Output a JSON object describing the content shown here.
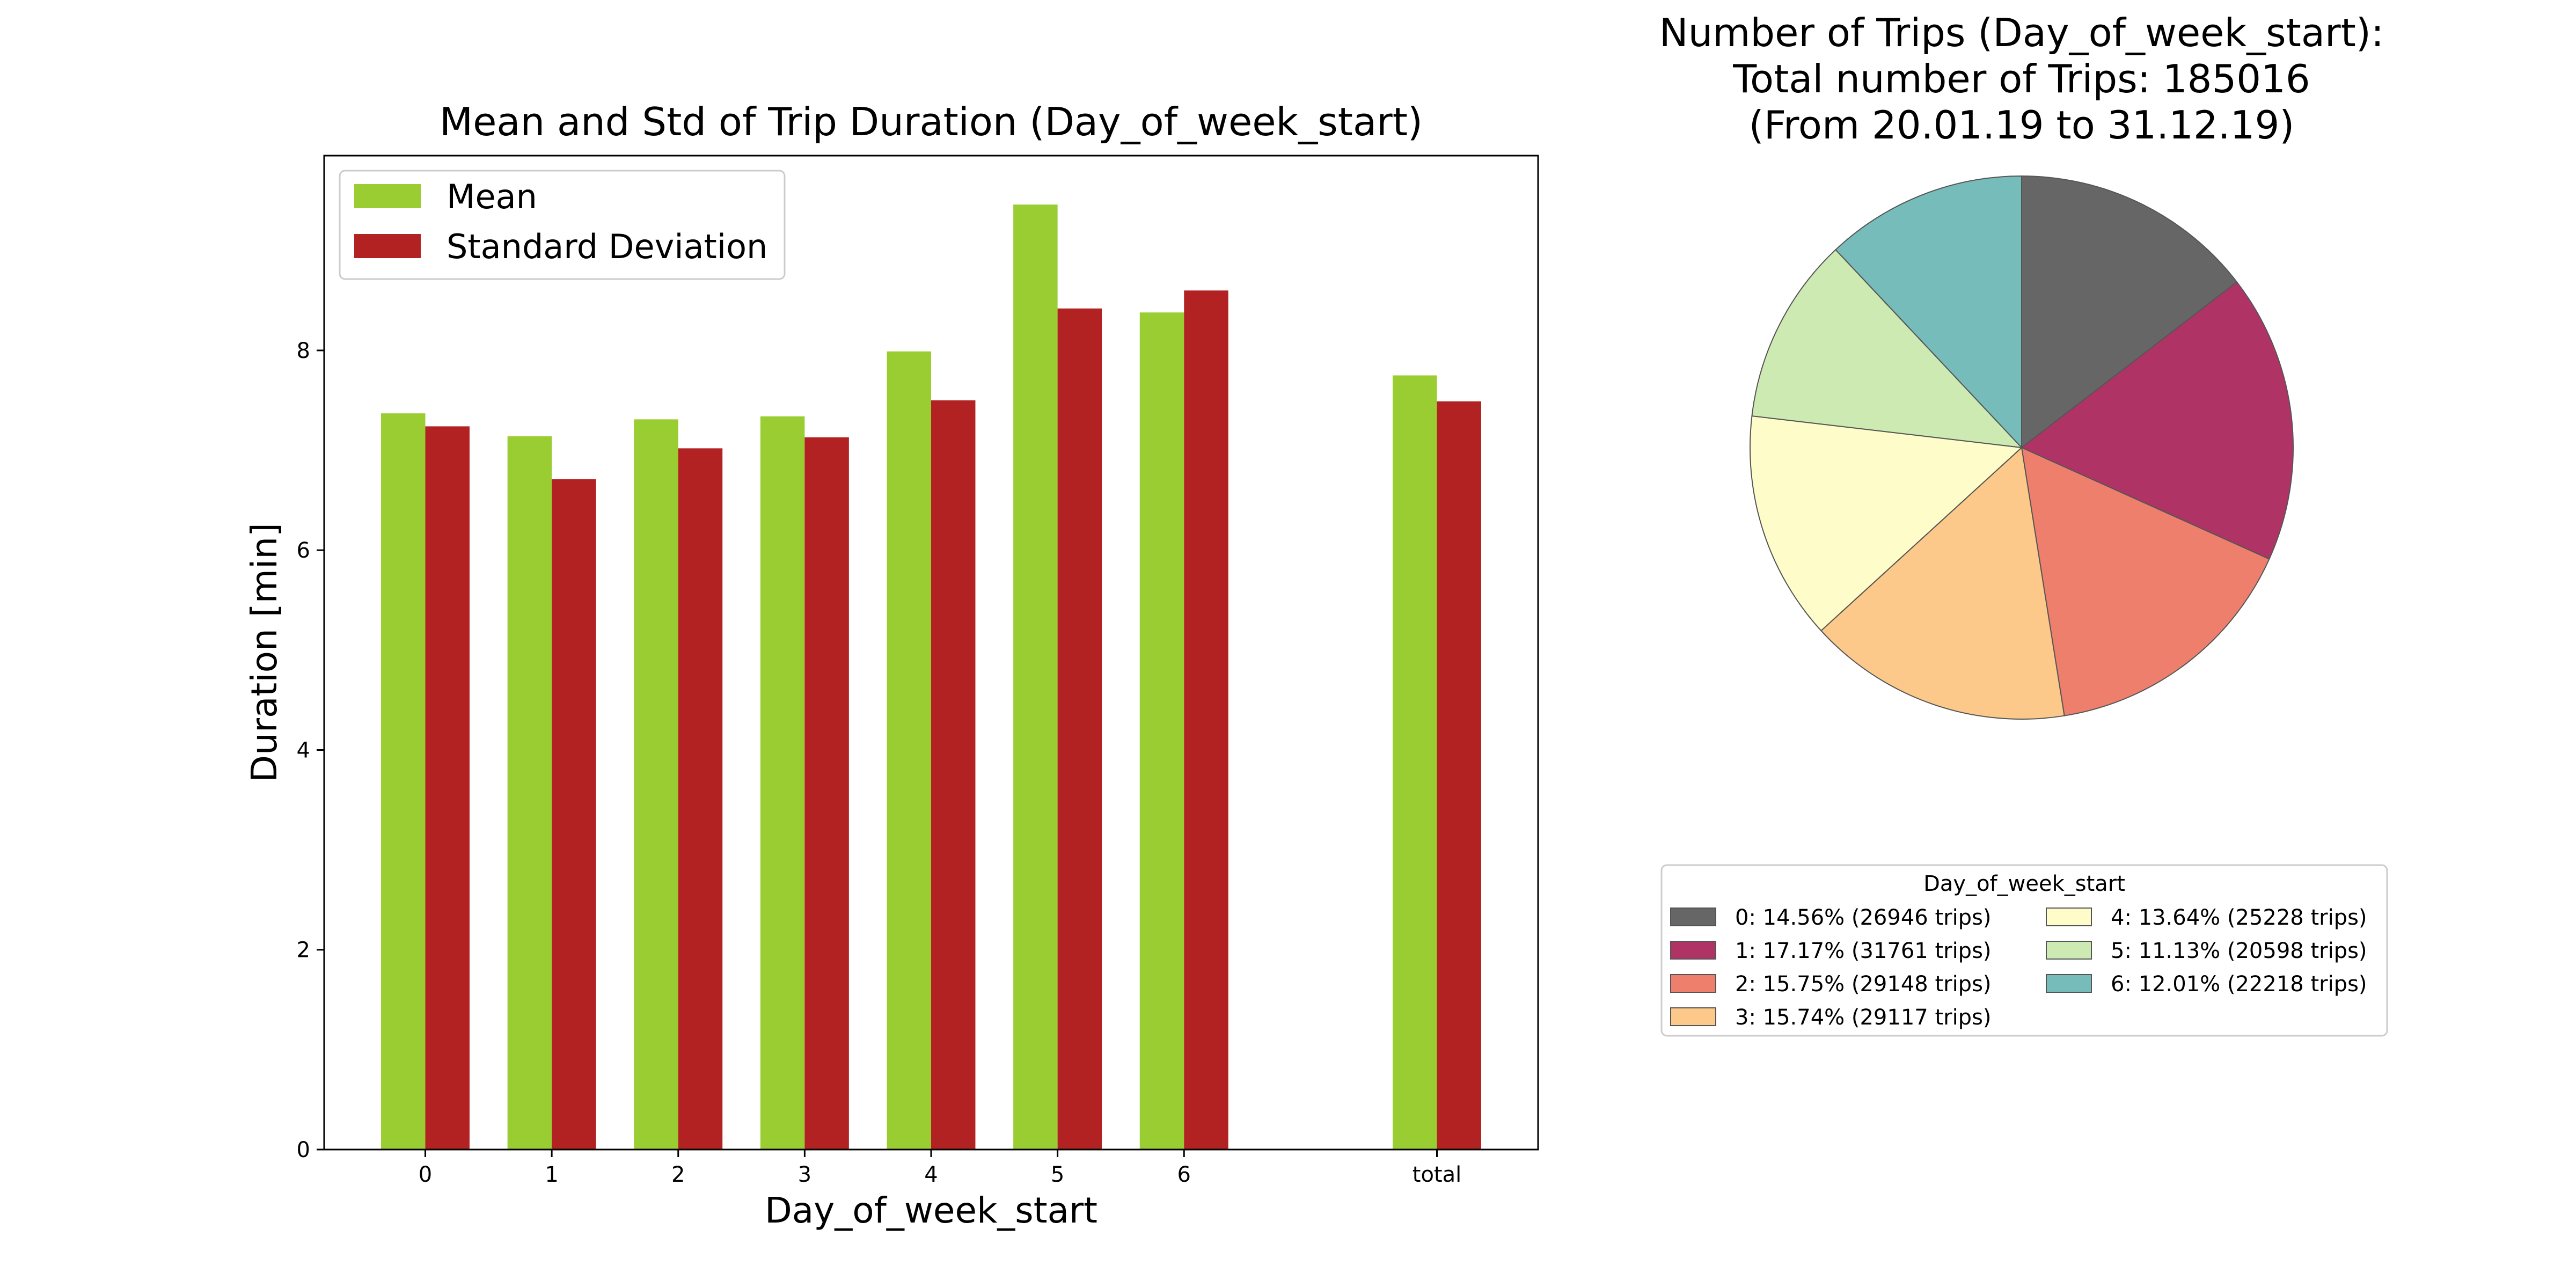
{
  "chart_data": [
    {
      "type": "bar",
      "title": "Mean and Std of Trip Duration (Day_of_week_start)",
      "xlabel": "Day_of_week_start",
      "ylabel": "Duration [min]",
      "categories": [
        "0",
        "1",
        "2",
        "3",
        "4",
        "5",
        "6",
        "total"
      ],
      "category_positions": [
        0,
        1,
        2,
        3,
        4,
        5,
        6,
        8
      ],
      "xlim": [
        -0.8,
        8.8
      ],
      "ylim": [
        0,
        9.95
      ],
      "yticks": [
        0,
        2,
        4,
        6,
        8
      ],
      "grid": false,
      "legend_position": "top-left",
      "series": [
        {
          "name": "Mean",
          "color": "#9acd32",
          "values": [
            7.37,
            7.14,
            7.31,
            7.34,
            7.99,
            9.46,
            8.38,
            7.75
          ]
        },
        {
          "name": "Standard Deviation",
          "color": "#b22222",
          "values": [
            7.24,
            6.71,
            7.02,
            7.13,
            7.5,
            8.42,
            8.6,
            7.49
          ]
        }
      ]
    },
    {
      "type": "pie",
      "title_lines": [
        "Number of Trips (Day_of_week_start):",
        "Total number of Trips: 185016",
        "(From 20.01.19 to 31.12.19)"
      ],
      "start_angle_deg": 90,
      "direction": "clockwise",
      "legend_title": "Day_of_week_start",
      "legend_position": "below",
      "slices": [
        {
          "label": "0: 14.56% (26946 trips)",
          "value": 26946,
          "color": "#666666"
        },
        {
          "label": "1: 17.17% (31761 trips)",
          "value": 31761,
          "color": "#b03366"
        },
        {
          "label": "2: 15.75% (29148 trips)",
          "value": 29148,
          "color": "#ee7f6d"
        },
        {
          "label": "3: 15.74% (29117 trips)",
          "value": 29117,
          "color": "#fcc98b"
        },
        {
          "label": "4: 13.64% (25228 trips)",
          "value": 25228,
          "color": "#fefdca"
        },
        {
          "label": "5: 11.13% (20598 trips)",
          "value": 20598,
          "color": "#cdeab3"
        },
        {
          "label": "6: 12.01% (22218 trips)",
          "value": 22218,
          "color": "#76bcba"
        }
      ]
    }
  ]
}
